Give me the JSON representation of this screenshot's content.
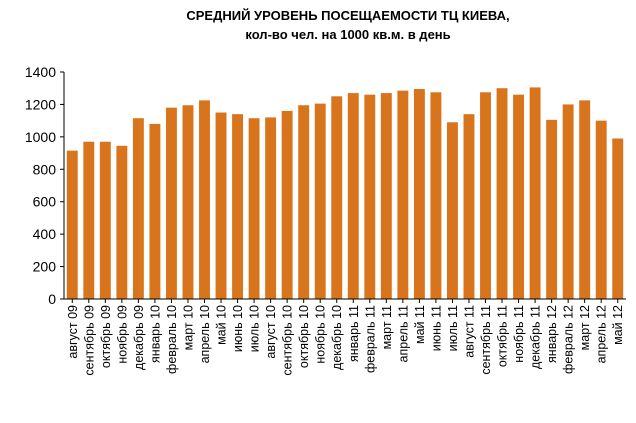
{
  "chart_data": {
    "type": "bar",
    "title": "СРЕДНИЙ УРОВЕНЬ ПОСЕЩАЕМОСТИ ТЦ КИЕВА,",
    "subtitle": "кол-во чел. на 1000 кв.м. в день",
    "xlabel": "",
    "ylabel": "",
    "ylim": [
      0,
      1400
    ],
    "yticks": [
      0,
      200,
      400,
      600,
      800,
      1000,
      1200,
      1400
    ],
    "grid": false,
    "bar_color": "#d8741b",
    "categories": [
      "август 09",
      "сентябрь 09",
      "октябрь 09",
      "ноябрь 09",
      "декабрь 09",
      "январь 10",
      "февраль 10",
      "март 10",
      "апрель 10",
      "май 10",
      "июнь 10",
      "июль 10",
      "август 10",
      "сентябрь 10",
      "октябрь 10",
      "ноябрь 10",
      "декабрь 10",
      "январь 11",
      "февраль 11",
      "март 11",
      "апрель 11",
      "май 11",
      "июнь 11",
      "июль 11",
      "август 11",
      "сентябрь 11",
      "октябрь 11",
      "ноябрь 11",
      "декабрь 11",
      "январь 12",
      "февраль 12",
      "март 12",
      "апрель 12",
      "май 12"
    ],
    "values": [
      915,
      970,
      970,
      945,
      1115,
      1080,
      1180,
      1195,
      1225,
      1150,
      1140,
      1115,
      1120,
      1160,
      1195,
      1205,
      1250,
      1270,
      1260,
      1270,
      1285,
      1295,
      1275,
      1090,
      1140,
      1275,
      1300,
      1260,
      1305,
      1105,
      1200,
      1225,
      1100,
      990
    ]
  }
}
